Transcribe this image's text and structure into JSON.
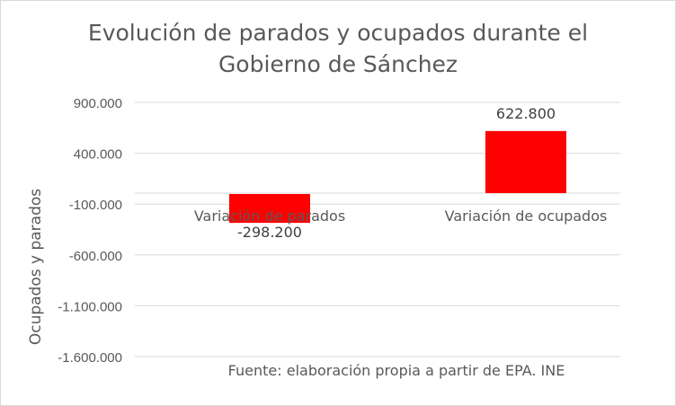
{
  "chart_data": {
    "type": "bar",
    "title": "Evolución de parados y ocupados durante el Gobierno de Sánchez",
    "title_lines": [
      "Evolución de parados y ocupados durante el",
      "Gobierno de Sánchez"
    ],
    "xlabel": "",
    "ylabel": "Ocupados y parados",
    "categories": [
      "Variación de parados",
      "Variación de ocupados"
    ],
    "values": [
      -298200,
      622800
    ],
    "data_labels": [
      "-298.200",
      "622.800"
    ],
    "yticks": [
      900000,
      400000,
      -100000,
      -600000,
      -1100000,
      -1600000
    ],
    "ytick_labels": [
      "900.000",
      "400.000",
      "-100.000",
      "-600.000",
      "-1.100.000",
      "-1.600.000"
    ],
    "ylim": [
      -1600000,
      900000
    ],
    "grid": true,
    "legend": "none",
    "bar_color": "#ff0000",
    "annotation": "Fuente: elaboración propia a partir de EPA. INE"
  }
}
